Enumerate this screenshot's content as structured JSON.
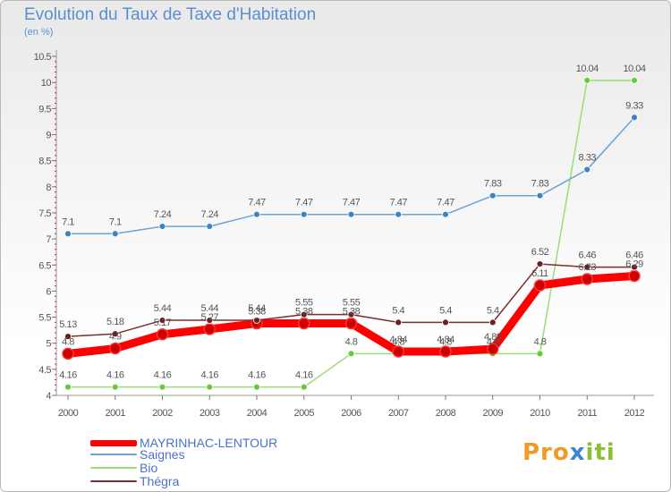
{
  "title": "Evolution du Taux de Taxe d'Habitation",
  "subtitle": "(en %)",
  "logo": {
    "text": "Proxiti",
    "colors": [
      "#f19a28",
      "#3f86cf",
      "#8bbf3a"
    ]
  },
  "chart_data": {
    "type": "line",
    "x": [
      "2000",
      "2001",
      "2002",
      "2003",
      "2004",
      "2005",
      "2006",
      "2007",
      "2008",
      "2009",
      "2010",
      "2011",
      "2012"
    ],
    "y_ticks": [
      "4",
      "4.5",
      "5",
      "5.5",
      "6",
      "6.5",
      "7",
      "7.5",
      "8",
      "8.5",
      "9",
      "9.5",
      "10",
      "10.5"
    ],
    "ylim": [
      4,
      10.5
    ],
    "grid": false,
    "series": [
      {
        "name": "MAYRINHAC-LENTOUR",
        "color": "#ff0000",
        "marker": "#cc0000",
        "values": [
          4.8,
          4.9,
          5.17,
          5.27,
          5.38,
          5.38,
          5.38,
          4.84,
          4.84,
          4.89,
          6.11,
          6.23,
          6.29
        ],
        "labels": [
          "4.8",
          "4.9",
          "5.17",
          "5.27",
          "5.38",
          "5.38",
          "5.38",
          "4.84",
          "4.84",
          "4.89",
          "6.11",
          "6.23",
          "6.29"
        ]
      },
      {
        "name": "Saignes",
        "color": "#6aa3d6",
        "marker": "#3f84c2",
        "values": [
          7.1,
          7.1,
          7.24,
          7.24,
          7.47,
          7.47,
          7.47,
          7.47,
          7.47,
          7.83,
          7.83,
          8.33,
          9.33
        ],
        "labels": [
          "7.1",
          "7.1",
          "7.24",
          "7.24",
          "7.47",
          "7.47",
          "7.47",
          "7.47",
          "7.47",
          "7.83",
          "7.83",
          "8.33",
          "9.33"
        ]
      },
      {
        "name": "Bio",
        "color": "#99dd77",
        "marker": "#66cc33",
        "values": [
          4.16,
          4.16,
          4.16,
          4.16,
          4.16,
          4.16,
          4.8,
          4.8,
          4.8,
          4.8,
          4.8,
          10.04,
          10.04
        ],
        "labels": [
          "4.16",
          "4.16",
          "4.16",
          "4.16",
          "4.16",
          "4.16",
          "4.8",
          "4.8",
          "4.8",
          "4.8",
          "4.8",
          "10.04",
          "10.04"
        ]
      },
      {
        "name": "Thégra",
        "color": "#7a2e2e",
        "marker": "#6b1f1f",
        "values": [
          5.13,
          5.18,
          5.44,
          5.44,
          5.44,
          5.55,
          5.55,
          5.4,
          5.4,
          5.4,
          6.52,
          6.46,
          6.46
        ],
        "labels": [
          "5.13",
          "5.18",
          "5.44",
          "5.44",
          "5.44",
          "5.55",
          "5.55",
          "5.4",
          "5.4",
          "5.4",
          "6.52",
          "6.46",
          "6.46"
        ]
      }
    ],
    "legend": [
      "MAYRINHAC-LENTOUR",
      "Saignes",
      "Bio",
      "Thégra"
    ],
    "legend_position": "bottom-left"
  }
}
